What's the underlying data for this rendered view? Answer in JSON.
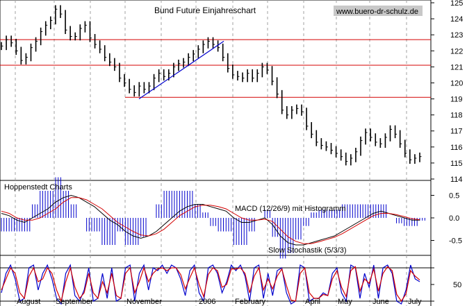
{
  "chart_data": [
    {
      "type": "line",
      "panel": "price",
      "title": "Bund Future Einjahreschart",
      "watermark": "www.buero-dr-schulz.de",
      "ylim": [
        114,
        125
      ],
      "yticks": [
        114,
        115,
        116,
        117,
        118,
        119,
        120,
        121,
        122,
        123,
        124,
        125
      ],
      "horizontal_lines": [
        122.7,
        121.1,
        119.1
      ],
      "trendline": {
        "from": [
          "Nov-03",
          119.0
        ],
        "to": [
          "Jan-05",
          122.6
        ]
      },
      "series": [
        {
          "values": [
            122.3,
            122.7,
            122.5,
            122.0,
            121.4,
            121.6,
            122.2,
            122.6,
            123.2,
            123.6,
            123.9,
            124.6,
            124.3,
            123.3,
            122.9,
            122.9,
            123.4,
            123.6,
            122.8,
            122.4,
            122.1,
            121.6,
            121.3,
            121.0,
            120.3,
            120.0,
            119.6,
            119.4,
            119.8,
            119.6,
            119.8,
            120.3,
            120.6,
            120.4,
            120.6,
            121.0,
            121.2,
            121.3,
            121.6,
            121.8,
            122.1,
            122.4,
            122.6,
            122.4,
            122.2,
            121.6,
            120.9,
            120.5,
            120.4,
            120.3,
            120.6,
            120.3,
            120.6,
            121.0,
            120.8,
            120.1,
            119.3,
            118.3,
            118.0,
            118.3,
            118.4,
            118.2,
            117.3,
            116.8,
            116.3,
            116.1,
            116.0,
            115.8,
            115.6,
            115.4,
            115.1,
            115.3,
            115.7,
            116.4,
            116.9,
            116.6,
            116.3,
            116.2,
            116.6,
            117.1,
            116.8,
            116.2,
            115.6,
            115.2,
            115.3,
            115.4
          ]
        }
      ]
    },
    {
      "type": "line",
      "panel": "macd",
      "title": "MACD (12/26/9) mit Histogramm",
      "left_label": "Hoppenstedt Charts",
      "ylim": [
        -0.8,
        0.8
      ],
      "yticks": [
        -0.5,
        0.0,
        0.5
      ],
      "ytick_labels": [
        "-0.5",
        "0.0",
        "0.5"
      ],
      "series": [
        {
          "values": [
            0.1,
            0.05,
            -0.05,
            -0.1,
            0.0,
            0.1,
            0.2,
            0.35,
            0.45,
            0.5,
            0.45,
            0.35,
            0.25,
            0.1,
            -0.05,
            -0.15,
            -0.3,
            -0.4,
            -0.45,
            -0.4,
            -0.3,
            -0.15,
            0.0,
            0.15,
            0.25,
            0.3,
            0.3,
            0.25,
            0.2,
            0.15,
            0.0,
            -0.1,
            -0.1,
            -0.05,
            0.0,
            -0.15,
            -0.4,
            -0.55,
            -0.6,
            -0.6,
            -0.55,
            -0.5,
            -0.45,
            -0.4,
            -0.3,
            -0.2,
            -0.1,
            0.0,
            0.1,
            0.15,
            0.1,
            0.05,
            0.0,
            -0.05,
            -0.05
          ],
          "color": "#000000"
        },
        {
          "values": [
            0.15,
            0.1,
            0.0,
            -0.05,
            -0.05,
            0.0,
            0.1,
            0.2,
            0.35,
            0.45,
            0.45,
            0.4,
            0.3,
            0.2,
            0.05,
            -0.1,
            -0.2,
            -0.3,
            -0.38,
            -0.4,
            -0.35,
            -0.25,
            -0.1,
            0.05,
            0.15,
            0.25,
            0.28,
            0.28,
            0.25,
            0.2,
            0.1,
            0.0,
            -0.05,
            -0.05,
            -0.03,
            -0.08,
            -0.25,
            -0.42,
            -0.52,
            -0.57,
            -0.57,
            -0.53,
            -0.48,
            -0.43,
            -0.35,
            -0.25,
            -0.15,
            -0.05,
            0.05,
            0.1,
            0.1,
            0.07,
            0.03,
            -0.02,
            -0.04
          ],
          "color": "#d40000"
        }
      ]
    },
    {
      "type": "line",
      "panel": "stochastic",
      "title": "Slow Stochastik (5/3/3)",
      "ylim": [
        0,
        100
      ],
      "yticks": [
        20,
        50,
        80
      ],
      "ytick_labels": [
        "",
        "50",
        ""
      ],
      "series": [
        {
          "values": [
            35,
            70,
            85,
            60,
            20,
            25,
            80,
            85,
            40,
            70,
            85,
            60,
            25,
            15,
            70,
            85,
            30,
            20,
            40,
            80,
            20,
            25,
            70,
            25,
            80,
            20,
            25,
            80,
            85,
            20,
            70,
            85,
            40,
            80,
            75,
            85,
            70,
            85,
            80,
            60,
            30,
            75,
            85,
            35,
            20,
            80,
            85,
            70,
            35,
            55,
            85,
            75,
            85,
            65,
            20,
            80,
            85,
            25,
            70,
            30,
            75,
            80,
            35,
            15,
            20,
            85,
            80,
            20,
            25,
            25,
            35,
            30,
            70,
            80,
            35,
            20,
            85,
            80,
            25,
            70,
            45,
            85,
            25,
            80,
            85,
            70,
            20,
            15,
            40,
            85,
            60,
            55
          ],
          "color": "#0000cc"
        },
        {
          "values": [
            40,
            60,
            80,
            70,
            35,
            25,
            65,
            80,
            55,
            60,
            80,
            70,
            40,
            20,
            55,
            80,
            45,
            25,
            35,
            70,
            35,
            25,
            55,
            35,
            70,
            30,
            25,
            70,
            80,
            35,
            55,
            80,
            55,
            70,
            78,
            80,
            75,
            80,
            80,
            68,
            42,
            62,
            80,
            50,
            28,
            68,
            80,
            75,
            45,
            50,
            78,
            78,
            80,
            70,
            35,
            65,
            80,
            40,
            60,
            42,
            65,
            78,
            48,
            22,
            20,
            70,
            80,
            35,
            25,
            25,
            32,
            30,
            60,
            75,
            45,
            28,
            75,
            82,
            38,
            60,
            52,
            78,
            38,
            70,
            82,
            75,
            32,
            20,
            33,
            75,
            65,
            58
          ],
          "color": "#d40000"
        }
      ]
    },
    {
      "type": "line",
      "panel": "x-axis",
      "categories": [
        "August",
        "September",
        "November",
        "2006",
        "February",
        "April",
        "May",
        "June",
        "July"
      ]
    }
  ]
}
